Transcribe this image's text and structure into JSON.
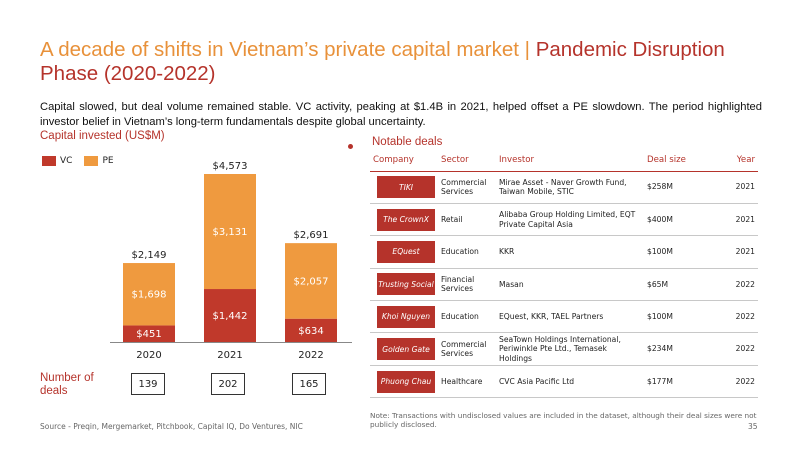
{
  "header": {
    "title_main": "A decade of shifts in Vietnam’s private capital market",
    "title_separator": " | ",
    "title_phase": "Pandemic Disruption Phase (2020-2022)",
    "intro": "Capital slowed, but deal volume remained stable. VC activity, peaking at $1.4B in 2021, helped offset a PE slowdown. The period highlighted investor belief in Vietnam’s long-term fundamentals despite global uncertainty."
  },
  "chart_section_label": "Capital invested (US$M)",
  "deals_section_label": "Notable deals",
  "colors": {
    "vc": "#c0392b",
    "pe": "#ef9a3f",
    "accent": "#b5332b"
  },
  "chart_data": {
    "type": "bar",
    "stacked": true,
    "categories": [
      "2020",
      "2021",
      "2022"
    ],
    "series": [
      {
        "name": "VC",
        "values": [
          451,
          1442,
          634
        ],
        "labels": [
          "$451",
          "$1,442",
          "$634"
        ]
      },
      {
        "name": "PE",
        "values": [
          1698,
          3131,
          2057
        ],
        "labels": [
          "$1,698",
          "$3,131",
          "$2,057"
        ]
      }
    ],
    "totals": [
      2149,
      4573,
      2691
    ],
    "total_labels": [
      "$2,149",
      "$4,573",
      "$2,691"
    ],
    "ylim": [
      0,
      4573
    ],
    "legend": "top-left",
    "grid": false
  },
  "number_of_deals": {
    "label": "Number of deals",
    "values": [
      "139",
      "202",
      "165"
    ]
  },
  "deals_table": {
    "headers": [
      "Company",
      "Sector",
      "Investor",
      "Deal size",
      "Year"
    ],
    "rows": [
      {
        "company": "TIKI",
        "sector": "Commercial Services",
        "investor": "Mirae Asset - Naver Growth Fund, Taiwan Mobile, STIC",
        "size": "$258M",
        "year": "2021"
      },
      {
        "company": "The CrownX",
        "sector": "Retail",
        "investor": "Alibaba Group Holding Limited, EQT Private Capital Asia",
        "size": "$400M",
        "year": "2021"
      },
      {
        "company": "EQuest",
        "sector": "Education",
        "investor": "KKR",
        "size": "$100M",
        "year": "2021"
      },
      {
        "company": "Trusting Social",
        "sector": "Financial Services",
        "investor": "Masan",
        "size": "$65M",
        "year": "2022"
      },
      {
        "company": "Khoi Nguyen",
        "sector": "Education",
        "investor": "EQuest, KKR, TAEL Partners",
        "size": "$100M",
        "year": "2022"
      },
      {
        "company": "Golden Gate",
        "sector": "Commercial Services",
        "investor": "SeaTown Holdings International, Periwinkle Pte Ltd., Temasek Holdings",
        "size": "$234M",
        "year": "2022"
      },
      {
        "company": "Phuong Chau",
        "sector": "Healthcare",
        "investor": "CVC Asia Pacific Ltd",
        "size": "$177M",
        "year": "2022"
      }
    ]
  },
  "footer": {
    "source": "Source - Preqin, Mergemarket, Pitchbook, Capital IQ, Do Ventures, NIC",
    "note": "Note: Transactions with undisclosed values are included in the dataset, although their deal sizes were not publicly disclosed.",
    "page_number": "35"
  }
}
